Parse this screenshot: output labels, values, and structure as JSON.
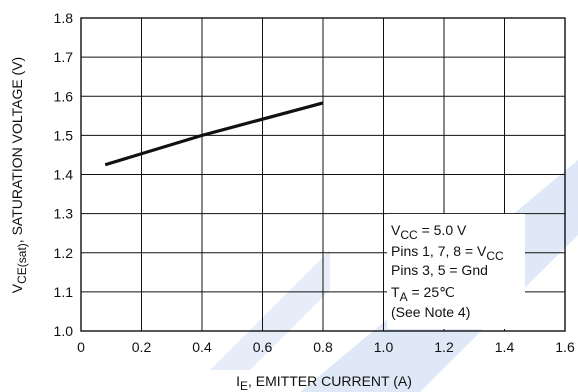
{
  "chart_data": {
    "type": "line",
    "title": "",
    "xlabel": {
      "main": "I",
      "sub": "E",
      "rest": ", EMITTER CURRENT (A)"
    },
    "ylabel": {
      "main": "V",
      "sub": "CE(sat)",
      "rest": ", SATURATION VOLTAGE (V)"
    },
    "xlim": [
      0,
      1.6
    ],
    "ylim": [
      1.0,
      1.8
    ],
    "x_ticks": [
      "0",
      "0.2",
      "0.4",
      "0.6",
      "0.8",
      "1.0",
      "1.2",
      "1.4",
      "1.6"
    ],
    "y_ticks": [
      "1.0",
      "1.1",
      "1.2",
      "1.3",
      "1.4",
      "1.5",
      "1.6",
      "1.7",
      "1.8"
    ],
    "grid": true,
    "series": [
      {
        "points": [
          [
            0.08,
            1.425
          ],
          [
            0.4,
            1.5
          ],
          [
            0.8,
            1.583
          ]
        ]
      }
    ],
    "annotations": [
      {
        "main": "V",
        "sub": "CC",
        "rest": " = 5.0 V"
      },
      {
        "main": "Pins 1, 7, 8 = V",
        "sub": "CC",
        "rest": ""
      },
      {
        "main": "Pins 3, 5 = Gnd",
        "sub": "",
        "rest": ""
      },
      {
        "main": "T",
        "sub": "A",
        "rest": " = 25℃"
      },
      {
        "main": "(See Note 4)",
        "sub": "",
        "rest": ""
      }
    ]
  },
  "colors": {
    "line": "#111111",
    "grid": "#111111",
    "watermark": "#d9e4f5"
  }
}
